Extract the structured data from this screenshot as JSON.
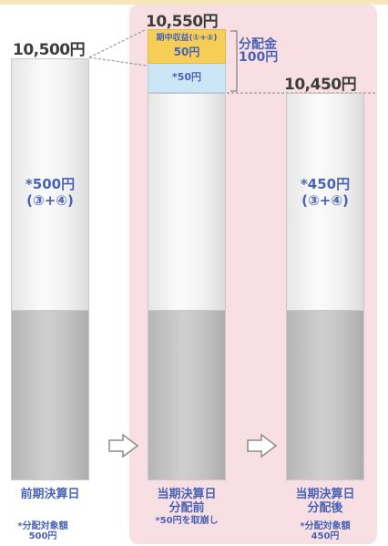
{
  "columns": {
    "prev": {
      "price": "10,500円",
      "center_line1": "*500円",
      "center_line2": "(③+④)",
      "label": "前期決算日",
      "note_line1": "*分配対象額",
      "note_line2": "500円"
    },
    "before": {
      "price": "10,550円",
      "box_yellow_line1": "期中収益(①+②)",
      "box_yellow_line2": "50円",
      "box_blue": "*50円",
      "label_line1": "当期決算日",
      "label_line2": "分配前",
      "note": "*50円を取崩し"
    },
    "after": {
      "price": "10,450円",
      "center_line1": "*450円",
      "center_line2": "(③+④)",
      "label_line1": "当期決算日",
      "label_line2": "分配後",
      "note_line1": "*分配対象額",
      "note_line2": "450円"
    }
  },
  "distribution": {
    "line1": "分配金",
    "line2": "100円"
  },
  "colors": {
    "text_blue": "#4a63b5",
    "yellow_box": "#f5cd57",
    "blue_box": "#cde6f5",
    "pink_panel": "#f7dfe4"
  }
}
